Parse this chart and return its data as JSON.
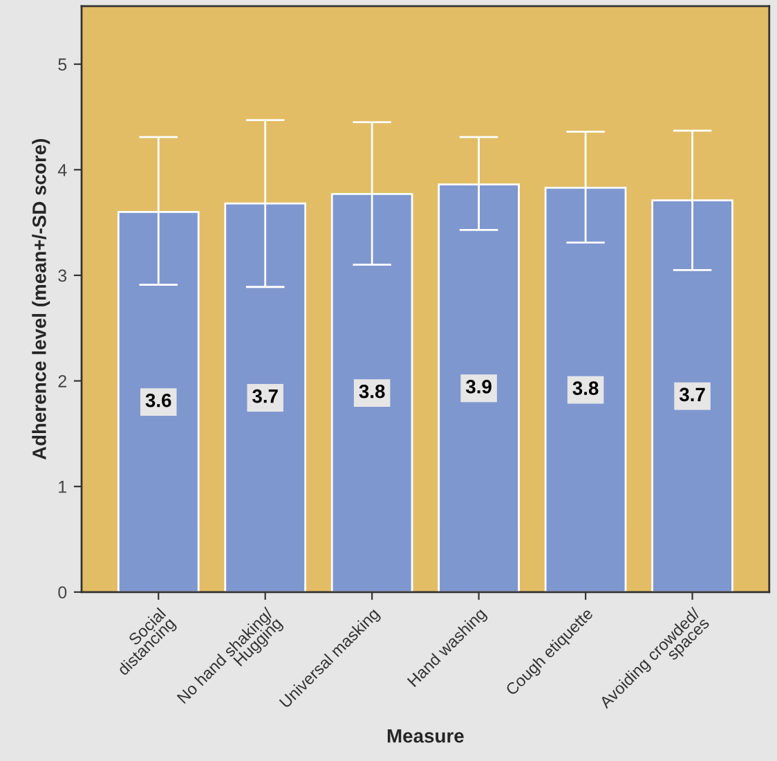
{
  "chart_data": {
    "type": "bar",
    "xlabel": "Measure",
    "ylabel": "Adherence level (mean+/-SD score)",
    "categories": [
      "Social\ndistancing",
      "No hand shaking/\nHugging",
      "Universal masking",
      "Hand washing",
      "Cough etiquette",
      "Avoiding crowded/\nspaces"
    ],
    "values": [
      3.6,
      3.68,
      3.77,
      3.86,
      3.83,
      3.71
    ],
    "errors": [
      [
        2.91,
        4.31
      ],
      [
        2.89,
        4.47
      ],
      [
        3.1,
        4.45
      ],
      [
        3.43,
        4.31
      ],
      [
        3.31,
        4.36
      ],
      [
        3.05,
        4.37
      ]
    ],
    "value_labels": [
      "3.6",
      "3.7",
      "3.8",
      "3.9",
      "3.8",
      "3.7"
    ],
    "color": "#7f97cf",
    "ylim": [
      0,
      5.55
    ],
    "yticks": [
      0,
      1,
      2,
      3,
      4,
      5
    ],
    "grid": false,
    "legend": false
  }
}
